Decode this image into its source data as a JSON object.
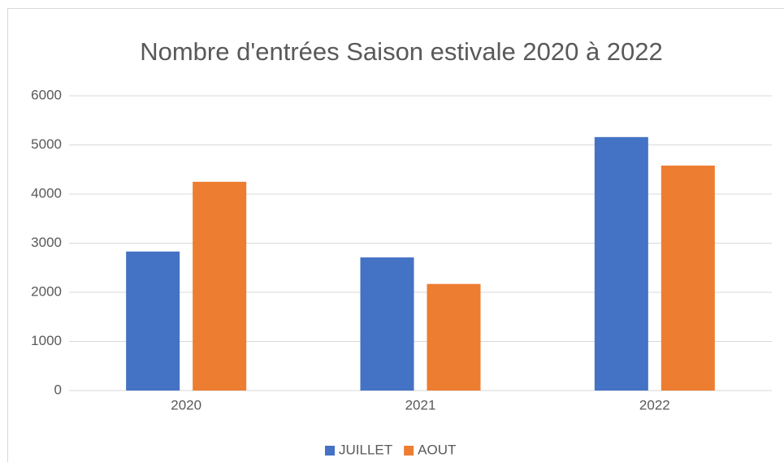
{
  "chart_data": {
    "type": "bar",
    "title": "Nombre d'entrées Saison estivale 2020 à 2022",
    "categories": [
      "2020",
      "2021",
      "2022"
    ],
    "series": [
      {
        "name": "JUILLET",
        "color": "#4472c4",
        "values": [
          2830,
          2710,
          5160
        ]
      },
      {
        "name": "AOUT",
        "color": "#ed7d31",
        "values": [
          4250,
          2170,
          4580
        ]
      }
    ],
    "ylim": [
      0,
      6000
    ],
    "yticks": [
      0,
      1000,
      2000,
      3000,
      4000,
      5000,
      6000
    ],
    "grid": true,
    "legend": "bottom"
  }
}
